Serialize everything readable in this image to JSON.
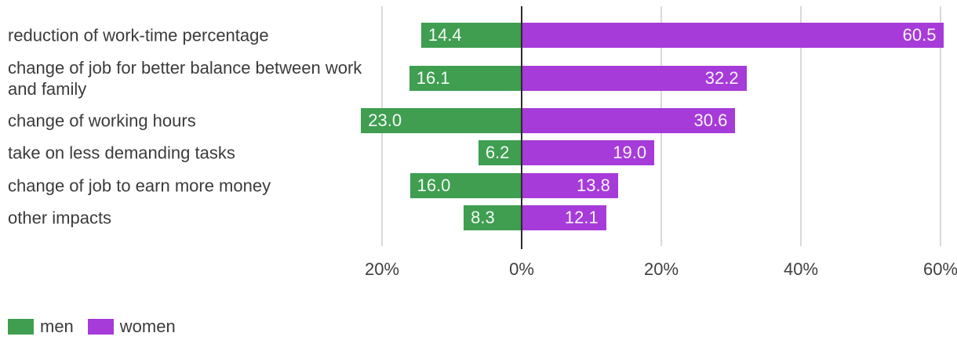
{
  "chart_data": {
    "type": "bar",
    "variant": "diverging-horizontal",
    "title": "",
    "categories": [
      "reduction of work-time percentage",
      "change of job for better balance between work and family",
      "change of working hours",
      "take on less demanding tasks",
      "change of job to earn more money",
      "other impacts"
    ],
    "series": [
      {
        "name": "men",
        "color": "#3f9e50",
        "direction": "left",
        "values": [
          14.4,
          16.1,
          23.0,
          6.2,
          16.0,
          8.3
        ]
      },
      {
        "name": "women",
        "color": "#a63bd9",
        "direction": "right",
        "values": [
          60.5,
          32.2,
          30.6,
          19.0,
          13.8,
          12.1
        ]
      }
    ],
    "x_axis": {
      "unit": "%",
      "tick_values": [
        -20,
        0,
        20,
        40,
        60
      ],
      "tick_labels": [
        "20%",
        "0%",
        "20%",
        "40%",
        "60%"
      ],
      "range": [
        -24.5,
        62.5
      ]
    },
    "value_label_format": "one-decimal",
    "grid": true,
    "legend_position": "bottom-left",
    "colors": {
      "zero_line": "#2b2b2b",
      "gridline": "#d9d9d9",
      "text": "#3b3b3b",
      "value_text": "#ffffff"
    }
  },
  "legend": {
    "men_label": "men",
    "women_label": "women"
  }
}
